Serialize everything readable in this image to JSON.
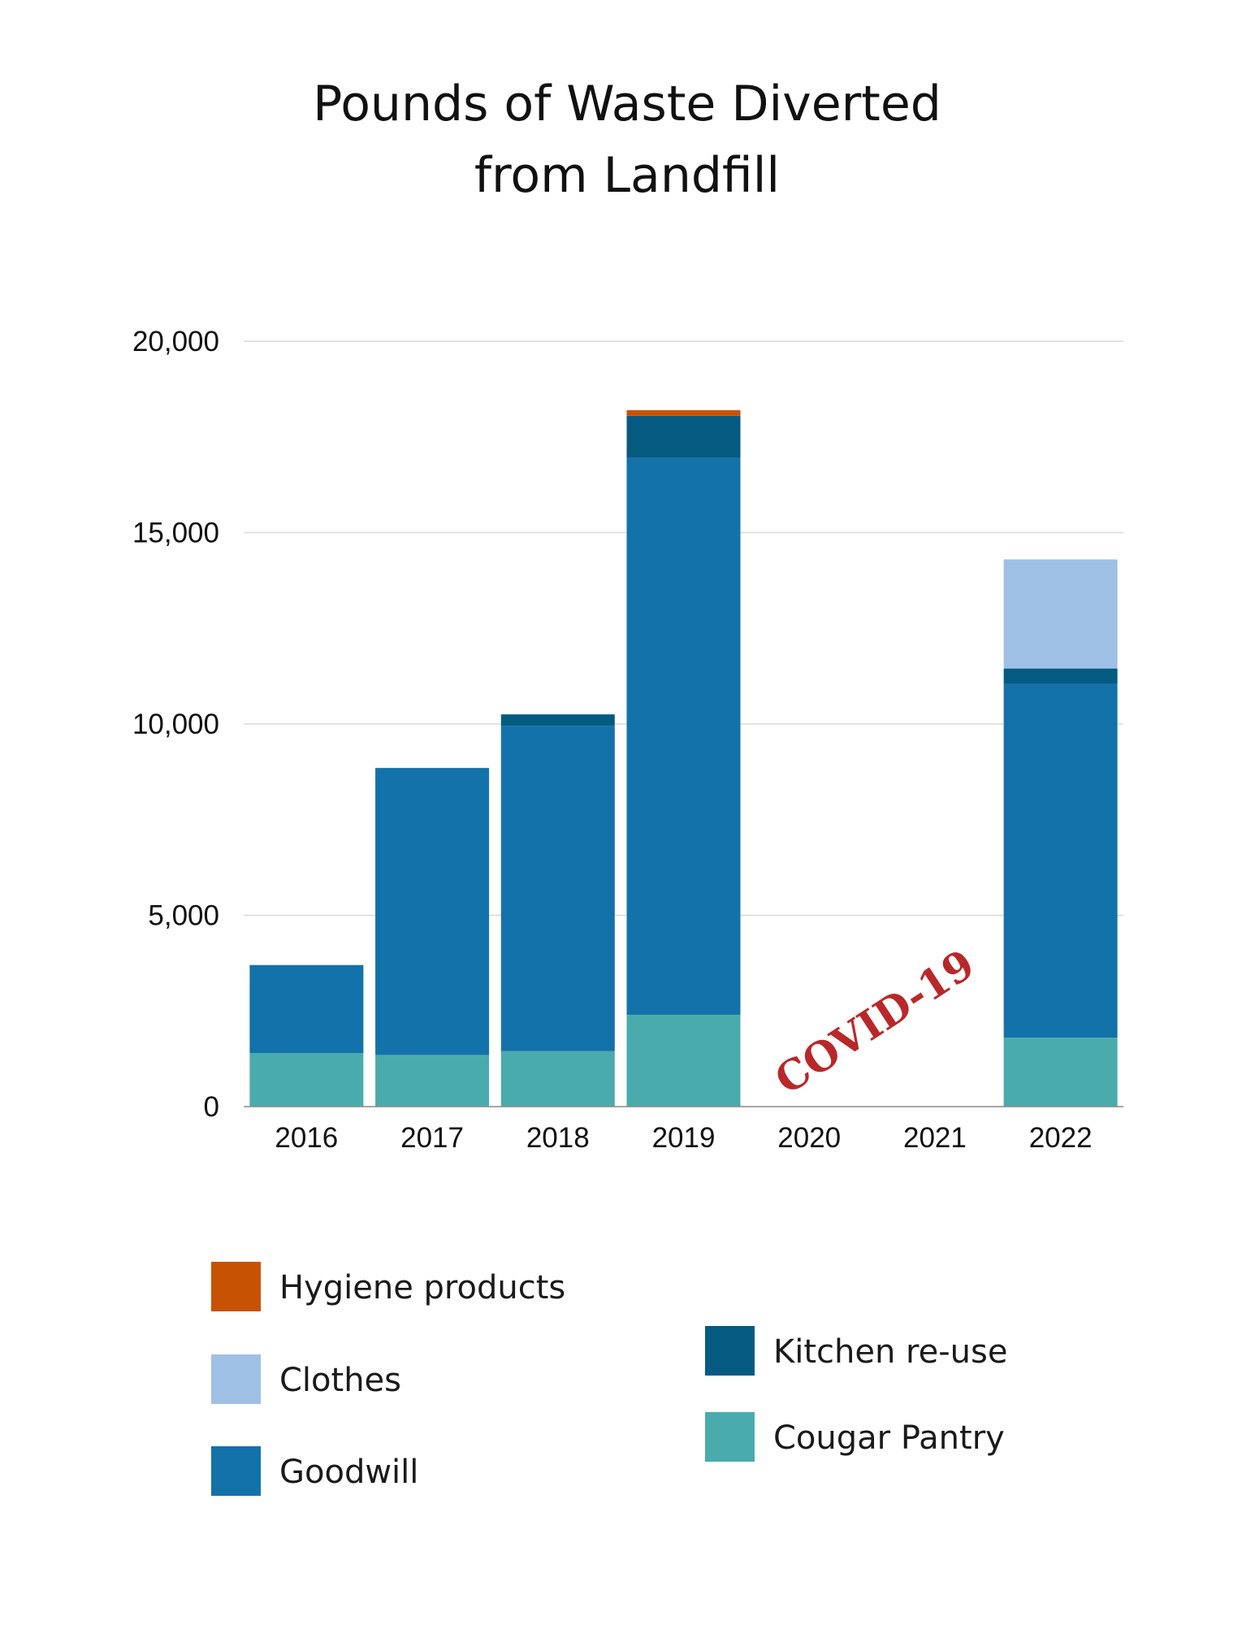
{
  "chart_data": {
    "type": "bar",
    "stacked": true,
    "title": [
      "Pounds of Waste Diverted",
      "from Landfill"
    ],
    "xlabel": "",
    "ylabel": "",
    "ylim": [
      0,
      20000
    ],
    "yticks": [
      0,
      5000,
      10000,
      15000,
      20000
    ],
    "ytick_labels": [
      "0",
      "5,000",
      "10,000",
      "15,000",
      "20,000"
    ],
    "grid": true,
    "categories": [
      "2016",
      "2017",
      "2018",
      "2019",
      "2020",
      "2021",
      "2022"
    ],
    "series": [
      {
        "name": "Cougar Pantry",
        "color": "#4aabad",
        "values": [
          1400,
          1350,
          1450,
          2400,
          0,
          0,
          1800
        ]
      },
      {
        "name": "Goodwill",
        "color": "#1372aa",
        "values": [
          2300,
          7500,
          8500,
          14550,
          0,
          0,
          9250
        ]
      },
      {
        "name": "Kitchen re-use",
        "color": "#055a82",
        "values": [
          0,
          0,
          300,
          1100,
          0,
          0,
          400
        ]
      },
      {
        "name": "Clothes",
        "color": "#9fc0e5",
        "values": [
          0,
          0,
          0,
          0,
          0,
          0,
          2850
        ]
      },
      {
        "name": "Hygiene products",
        "color": "#c75204",
        "values": [
          0,
          0,
          0,
          150,
          0,
          0,
          0
        ]
      }
    ],
    "legend_order": [
      "Hygiene products",
      "Clothes",
      "Goodwill",
      "Kitchen re-use",
      "Cougar Pantry"
    ],
    "legend_position": "bottom",
    "annotation": {
      "text": "COVID-19",
      "near_category": "2020",
      "color": "#b8282a"
    }
  }
}
